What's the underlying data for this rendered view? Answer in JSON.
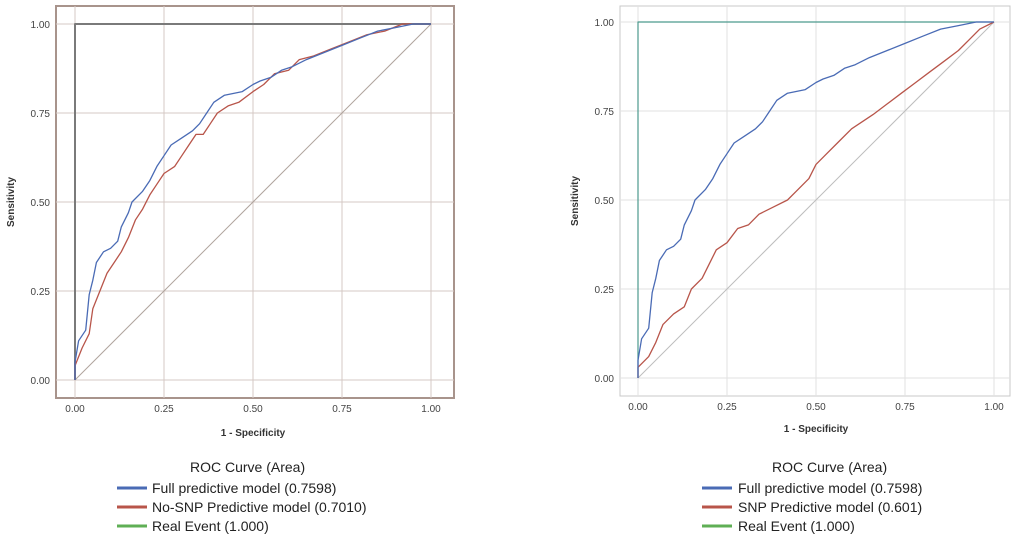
{
  "chart_data": [
    {
      "type": "line",
      "xlabel": "1 - Specificity",
      "ylabel": "Sensitivity",
      "xlim": [
        0,
        1
      ],
      "ylim": [
        0,
        1
      ],
      "x_ticks": [
        "0.00",
        "0.25",
        "0.50",
        "0.75",
        "1.00"
      ],
      "y_ticks": [
        "0.00",
        "0.25",
        "0.50",
        "0.75",
        "1.00"
      ],
      "legend_title": "ROC Curve (Area)",
      "legend_position": "bottom",
      "grid": true,
      "series": [
        {
          "name": "Full predictive model (0.7598)",
          "color": "#4a6bb5",
          "points": [
            [
              0,
              0
            ],
            [
              0,
              0.05
            ],
            [
              0.01,
              0.11
            ],
            [
              0.03,
              0.14
            ],
            [
              0.04,
              0.24
            ],
            [
              0.05,
              0.28
            ],
            [
              0.06,
              0.33
            ],
            [
              0.08,
              0.36
            ],
            [
              0.1,
              0.37
            ],
            [
              0.12,
              0.39
            ],
            [
              0.13,
              0.43
            ],
            [
              0.15,
              0.47
            ],
            [
              0.16,
              0.5
            ],
            [
              0.19,
              0.53
            ],
            [
              0.21,
              0.56
            ],
            [
              0.23,
              0.6
            ],
            [
              0.25,
              0.63
            ],
            [
              0.27,
              0.66
            ],
            [
              0.3,
              0.68
            ],
            [
              0.33,
              0.7
            ],
            [
              0.35,
              0.72
            ],
            [
              0.37,
              0.75
            ],
            [
              0.39,
              0.78
            ],
            [
              0.42,
              0.8
            ],
            [
              0.47,
              0.81
            ],
            [
              0.5,
              0.83
            ],
            [
              0.52,
              0.84
            ],
            [
              0.55,
              0.85
            ],
            [
              0.58,
              0.87
            ],
            [
              0.61,
              0.88
            ],
            [
              0.65,
              0.9
            ],
            [
              0.7,
              0.92
            ],
            [
              0.75,
              0.94
            ],
            [
              0.8,
              0.96
            ],
            [
              0.85,
              0.98
            ],
            [
              0.9,
              0.99
            ],
            [
              0.95,
              1
            ],
            [
              1,
              1
            ]
          ]
        },
        {
          "name": "No-SNP Predictive model (0.7010)",
          "color": "#b8554a",
          "points": [
            [
              0,
              0
            ],
            [
              0,
              0.04
            ],
            [
              0.02,
              0.09
            ],
            [
              0.04,
              0.13
            ],
            [
              0.05,
              0.2
            ],
            [
              0.07,
              0.25
            ],
            [
              0.09,
              0.3
            ],
            [
              0.11,
              0.33
            ],
            [
              0.13,
              0.36
            ],
            [
              0.15,
              0.4
            ],
            [
              0.17,
              0.45
            ],
            [
              0.19,
              0.48
            ],
            [
              0.21,
              0.52
            ],
            [
              0.23,
              0.55
            ],
            [
              0.25,
              0.58
            ],
            [
              0.28,
              0.6
            ],
            [
              0.3,
              0.63
            ],
            [
              0.32,
              0.66
            ],
            [
              0.34,
              0.69
            ],
            [
              0.36,
              0.69
            ],
            [
              0.38,
              0.72
            ],
            [
              0.4,
              0.75
            ],
            [
              0.43,
              0.77
            ],
            [
              0.46,
              0.78
            ],
            [
              0.5,
              0.81
            ],
            [
              0.53,
              0.83
            ],
            [
              0.56,
              0.86
            ],
            [
              0.6,
              0.87
            ],
            [
              0.63,
              0.9
            ],
            [
              0.67,
              0.91
            ],
            [
              0.72,
              0.93
            ],
            [
              0.77,
              0.95
            ],
            [
              0.82,
              0.97
            ],
            [
              0.87,
              0.98
            ],
            [
              0.92,
              1
            ],
            [
              1,
              1
            ]
          ]
        },
        {
          "name": "Real Event (1.000)",
          "color": "#5faf55",
          "points": [
            [
              0,
              0
            ],
            [
              0,
              1
            ],
            [
              1,
              1
            ]
          ]
        }
      ]
    },
    {
      "type": "line",
      "xlabel": "1 - Specificity",
      "ylabel": "Sensitivity",
      "xlim": [
        0,
        1
      ],
      "ylim": [
        0,
        1
      ],
      "x_ticks": [
        "0.00",
        "0.25",
        "0.50",
        "0.75",
        "1.00"
      ],
      "y_ticks": [
        "0.00",
        "0.25",
        "0.50",
        "0.75",
        "1.00"
      ],
      "legend_title": "ROC Curve (Area)",
      "legend_position": "bottom",
      "grid": true,
      "series": [
        {
          "name": "Full predictive model (0.7598)",
          "color": "#4a6bb5",
          "points": [
            [
              0,
              0
            ],
            [
              0,
              0.05
            ],
            [
              0.01,
              0.11
            ],
            [
              0.03,
              0.14
            ],
            [
              0.04,
              0.24
            ],
            [
              0.05,
              0.28
            ],
            [
              0.06,
              0.33
            ],
            [
              0.08,
              0.36
            ],
            [
              0.1,
              0.37
            ],
            [
              0.12,
              0.39
            ],
            [
              0.13,
              0.43
            ],
            [
              0.15,
              0.47
            ],
            [
              0.16,
              0.5
            ],
            [
              0.19,
              0.53
            ],
            [
              0.21,
              0.56
            ],
            [
              0.23,
              0.6
            ],
            [
              0.25,
              0.63
            ],
            [
              0.27,
              0.66
            ],
            [
              0.3,
              0.68
            ],
            [
              0.33,
              0.7
            ],
            [
              0.35,
              0.72
            ],
            [
              0.37,
              0.75
            ],
            [
              0.39,
              0.78
            ],
            [
              0.42,
              0.8
            ],
            [
              0.47,
              0.81
            ],
            [
              0.5,
              0.83
            ],
            [
              0.52,
              0.84
            ],
            [
              0.55,
              0.85
            ],
            [
              0.58,
              0.87
            ],
            [
              0.61,
              0.88
            ],
            [
              0.65,
              0.9
            ],
            [
              0.7,
              0.92
            ],
            [
              0.75,
              0.94
            ],
            [
              0.8,
              0.96
            ],
            [
              0.85,
              0.98
            ],
            [
              0.9,
              0.99
            ],
            [
              0.95,
              1
            ],
            [
              1,
              1
            ]
          ]
        },
        {
          "name": "SNP Predictive model (0.601)",
          "color": "#b8554a",
          "points": [
            [
              0,
              0
            ],
            [
              0,
              0.03
            ],
            [
              0.03,
              0.06
            ],
            [
              0.05,
              0.1
            ],
            [
              0.07,
              0.15
            ],
            [
              0.1,
              0.18
            ],
            [
              0.13,
              0.2
            ],
            [
              0.15,
              0.25
            ],
            [
              0.18,
              0.28
            ],
            [
              0.2,
              0.32
            ],
            [
              0.22,
              0.36
            ],
            [
              0.25,
              0.38
            ],
            [
              0.28,
              0.42
            ],
            [
              0.31,
              0.43
            ],
            [
              0.34,
              0.46
            ],
            [
              0.38,
              0.48
            ],
            [
              0.42,
              0.5
            ],
            [
              0.45,
              0.53
            ],
            [
              0.48,
              0.56
            ],
            [
              0.5,
              0.6
            ],
            [
              0.53,
              0.63
            ],
            [
              0.56,
              0.66
            ],
            [
              0.6,
              0.7
            ],
            [
              0.63,
              0.72
            ],
            [
              0.66,
              0.74
            ],
            [
              0.7,
              0.77
            ],
            [
              0.74,
              0.8
            ],
            [
              0.78,
              0.83
            ],
            [
              0.82,
              0.86
            ],
            [
              0.86,
              0.89
            ],
            [
              0.9,
              0.92
            ],
            [
              0.93,
              0.95
            ],
            [
              0.96,
              0.98
            ],
            [
              1,
              1
            ]
          ]
        },
        {
          "name": "Real Event (1.000)",
          "color": "#5faf55",
          "points": [
            [
              0,
              0
            ],
            [
              0,
              1
            ],
            [
              1,
              1
            ]
          ]
        }
      ]
    }
  ]
}
